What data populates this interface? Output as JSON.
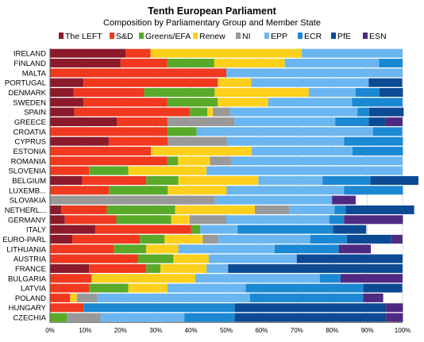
{
  "chart_data": {
    "type": "bar",
    "orientation": "horizontal",
    "stacked": true,
    "title": "Tenth European Parliament",
    "subtitle": "Composition by Parliamentary Group and Member State",
    "legend_position": "top",
    "grid": true,
    "xlim": [
      0,
      100
    ],
    "x_ticks": [
      "0%",
      "10%",
      "20%",
      "30%",
      "40%",
      "50%",
      "60%",
      "70%",
      "80%",
      "90%",
      "100%"
    ],
    "categories": [
      "IRELAND",
      "FINLAND",
      "MALTA",
      "PORTUGAL",
      "DENMARK",
      "SWEDEN",
      "SPAIN",
      "GREECE",
      "CROATIA",
      "CYPRUS",
      "ESTONIA",
      "ROMANIA",
      "SLOVENIA",
      "BELGIUM",
      "LUXEMB...",
      "SLOVAKIA",
      "NETHERL...",
      "GERMANY",
      "ITALY",
      "EURO-PARL",
      "LITHUANIA",
      "AUSTRIA",
      "FRANCE",
      "BULGARIA",
      "LATVIA",
      "POLAND",
      "HUNGARY",
      "CZECHIA"
    ],
    "series": [
      {
        "name": "The LEFT",
        "color": "#8b1a2b",
        "values": [
          21.4,
          20.0,
          0,
          9.5,
          6.7,
          9.5,
          6.9,
          19.0,
          0,
          16.7,
          0,
          0,
          0,
          9.1,
          0,
          0,
          3.2,
          4.2,
          12.9,
          6.3,
          0,
          0,
          11.1,
          0,
          0,
          0,
          0,
          0
        ]
      },
      {
        "name": "S&D",
        "color": "#f0391f",
        "values": [
          7.1,
          13.3,
          50.0,
          38.1,
          20.0,
          23.8,
          32.8,
          14.3,
          33.3,
          16.7,
          28.6,
          33.3,
          11.1,
          18.2,
          16.7,
          0,
          12.9,
          14.6,
          27.1,
          19.2,
          18.2,
          25.0,
          16.2,
          11.8,
          11.1,
          5.7,
          9.5,
          0
        ]
      },
      {
        "name": "Greens/EFA",
        "color": "#5aaa2a",
        "values": [
          0,
          13.3,
          0,
          0,
          20.0,
          14.3,
          4.9,
          0,
          8.3,
          0,
          0,
          3.0,
          11.1,
          9.1,
          16.7,
          0,
          19.4,
          15.6,
          2.6,
          7.0,
          9.1,
          10.0,
          4.0,
          0,
          11.1,
          0,
          0,
          4.8
        ]
      },
      {
        "name": "Renew",
        "color": "#fcd01c",
        "values": [
          42.9,
          20.0,
          0,
          9.5,
          26.7,
          14.3,
          1.6,
          0,
          0,
          0,
          28.6,
          9.1,
          22.2,
          22.7,
          16.7,
          0,
          22.6,
          5.2,
          0,
          10.8,
          9.1,
          10.0,
          13.1,
          29.4,
          11.1,
          1.9,
          0,
          0
        ]
      },
      {
        "name": "NI",
        "color": "#999999",
        "values": [
          0,
          0,
          0,
          0,
          0,
          0,
          4.9,
          19.0,
          0,
          16.7,
          0,
          6.1,
          0,
          0,
          0,
          46.7,
          9.7,
          10.4,
          0,
          4.4,
          0,
          0,
          0,
          0,
          0,
          5.7,
          0,
          9.5
        ]
      },
      {
        "name": "EPP",
        "color": "#6bb6f0",
        "values": [
          28.6,
          26.7,
          50.0,
          33.3,
          13.3,
          23.8,
          36.1,
          28.6,
          50.0,
          33.3,
          28.6,
          48.5,
          55.6,
          18.2,
          33.3,
          33.3,
          12.9,
          29.2,
          10.6,
          26.1,
          27.3,
          25.0,
          6.1,
          35.3,
          22.2,
          43.4,
          0,
          23.8
        ]
      },
      {
        "name": "ECR",
        "color": "#1b88d4",
        "values": [
          0,
          6.7,
          0,
          0,
          6.7,
          14.3,
          3.3,
          9.5,
          8.3,
          16.7,
          14.3,
          0,
          0,
          13.6,
          16.7,
          0,
          3.2,
          4.2,
          27.1,
          10.4,
          18.2,
          0,
          0,
          5.9,
          33.3,
          32.1,
          42.9,
          14.3
        ]
      },
      {
        "name": "PfE",
        "color": "#0d4a94",
        "values": [
          0,
          0,
          0,
          9.5,
          6.7,
          0,
          9.8,
          4.8,
          0,
          0,
          0,
          0,
          0,
          13.6,
          0,
          0,
          19.4,
          0,
          9.4,
          12.7,
          0,
          30.0,
          49.5,
          0,
          11.1,
          0,
          42.9,
          42.9
        ]
      },
      {
        "name": "ESN",
        "color": "#4f2a82",
        "values": [
          0,
          0,
          0,
          0,
          0,
          0,
          0,
          4.8,
          0,
          0,
          0,
          0,
          0,
          0,
          0,
          6.7,
          0,
          16.7,
          0,
          3.1,
          9.1,
          0,
          0,
          17.6,
          0,
          5.7,
          4.8,
          4.8
        ]
      }
    ]
  }
}
